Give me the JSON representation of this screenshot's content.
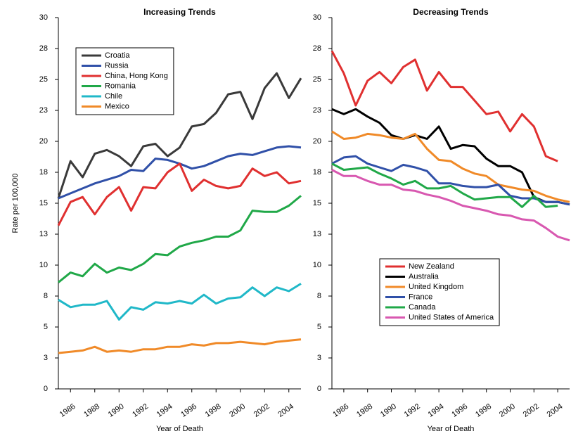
{
  "chart_data": [
    {
      "type": "line",
      "title": "Increasing Trends",
      "y_label": "Rate per 100,000",
      "x_label": "Year of Death",
      "x": [
        1985,
        1986,
        1987,
        1988,
        1989,
        1990,
        1991,
        1992,
        1993,
        1994,
        1995,
        1996,
        1997,
        1998,
        1999,
        2000,
        2001,
        2002,
        2003,
        2004,
        2005
      ],
      "xlim": [
        1985,
        2005
      ],
      "xticks": [
        1986,
        1988,
        1990,
        1992,
        1994,
        1996,
        1998,
        2000,
        2002,
        2004
      ],
      "ylim": [
        0,
        30
      ],
      "yticks": [
        0,
        {
          "value": 2.5,
          "label": "3"
        },
        5,
        {
          "value": 7.5,
          "label": "8"
        },
        10,
        {
          "value": 12.5,
          "label": "13"
        },
        15,
        {
          "value": 17.5,
          "label": "18"
        },
        20,
        {
          "value": 22.5,
          "label": "23"
        },
        25,
        {
          "value": 27.5,
          "label": "28"
        },
        30
      ],
      "legend_position": "upper left",
      "series": [
        {
          "name": "Croatia",
          "color": "#3a3a3a",
          "values": [
            15.4,
            18.4,
            17.1,
            19.0,
            19.3,
            18.8,
            18.0,
            19.6,
            19.8,
            18.8,
            19.5,
            21.2,
            21.4,
            22.3,
            23.8,
            24.0,
            21.8,
            24.3,
            25.5,
            23.5,
            25.1
          ]
        },
        {
          "name": "Russia",
          "color": "#3050a8",
          "values": [
            15.4,
            15.8,
            16.2,
            16.6,
            16.9,
            17.2,
            17.7,
            17.6,
            18.6,
            18.5,
            18.2,
            17.8,
            18.0,
            18.4,
            18.8,
            19.0,
            18.9,
            19.2,
            19.5,
            19.6,
            19.5
          ]
        },
        {
          "name": "China, Hong Kong",
          "color": "#e03030",
          "values": [
            13.2,
            15.1,
            15.5,
            14.1,
            15.5,
            16.3,
            14.4,
            16.3,
            16.2,
            17.5,
            18.2,
            16.0,
            16.9,
            16.4,
            16.2,
            16.4,
            17.8,
            17.2,
            17.5,
            16.6,
            16.8
          ]
        },
        {
          "name": "Romania",
          "color": "#20a848",
          "values": [
            8.6,
            9.4,
            9.1,
            10.1,
            9.4,
            9.8,
            9.6,
            10.1,
            10.9,
            10.8,
            11.5,
            11.8,
            12.0,
            12.3,
            12.3,
            12.8,
            14.4,
            14.3,
            14.3,
            14.8,
            15.6
          ]
        },
        {
          "name": "Chile",
          "color": "#20b8c8",
          "values": [
            7.2,
            6.6,
            6.8,
            6.8,
            7.1,
            5.6,
            6.6,
            6.4,
            7.0,
            6.9,
            7.1,
            6.9,
            7.6,
            6.9,
            7.3,
            7.4,
            8.2,
            7.5,
            8.2,
            7.9,
            8.5
          ]
        },
        {
          "name": "Mexico",
          "color": "#f08a28",
          "values": [
            2.9,
            3.0,
            3.1,
            3.4,
            3.0,
            3.1,
            3.0,
            3.2,
            3.2,
            3.4,
            3.4,
            3.6,
            3.5,
            3.7,
            3.7,
            3.8,
            3.7,
            3.6,
            3.8,
            3.9,
            4.0
          ]
        }
      ]
    },
    {
      "type": "line",
      "title": "Decreasing Trends",
      "x_label": "Year of Death",
      "x": [
        1985,
        1986,
        1987,
        1988,
        1989,
        1990,
        1991,
        1992,
        1993,
        1994,
        1995,
        1996,
        1997,
        1998,
        1999,
        2000,
        2001,
        2002,
        2003,
        2004,
        2005
      ],
      "xlim": [
        1985,
        2005
      ],
      "xticks": [
        1986,
        1988,
        1990,
        1992,
        1994,
        1996,
        1998,
        2000,
        2002,
        2004
      ],
      "ylim": [
        0,
        30
      ],
      "yticks": [
        0,
        {
          "value": 2.5,
          "label": "3"
        },
        5,
        {
          "value": 7.5,
          "label": "8"
        },
        10,
        {
          "value": 12.5,
          "label": "13"
        },
        15,
        {
          "value": 17.5,
          "label": "18"
        },
        20,
        {
          "value": 22.5,
          "label": "23"
        },
        25,
        {
          "value": 27.5,
          "label": "28"
        },
        30
      ],
      "legend_position": "lower center",
      "series": [
        {
          "name": "New Zealand",
          "color": "#e03030",
          "values": [
            27.3,
            25.5,
            22.9,
            24.9,
            25.6,
            24.7,
            26.0,
            26.6,
            24.1,
            25.6,
            24.4,
            24.4,
            23.3,
            22.2,
            22.4,
            20.8,
            22.2,
            21.2,
            18.8,
            18.4,
            null
          ]
        },
        {
          "name": "Australia",
          "color": "#000000",
          "values": [
            22.6,
            22.2,
            22.6,
            22.0,
            21.5,
            20.5,
            20.2,
            20.5,
            20.2,
            21.2,
            19.4,
            19.7,
            19.6,
            18.6,
            18.0,
            18.0,
            17.5,
            15.5,
            15.1,
            15.1,
            14.9
          ]
        },
        {
          "name": "United Kingdom",
          "color": "#f08a28",
          "values": [
            20.8,
            20.2,
            20.3,
            20.6,
            20.5,
            20.3,
            20.2,
            20.6,
            19.4,
            18.5,
            18.4,
            17.8,
            17.4,
            17.2,
            16.5,
            16.3,
            16.1,
            16.0,
            15.6,
            15.3,
            15.1
          ]
        },
        {
          "name": "France",
          "color": "#3050a8",
          "values": [
            18.2,
            18.7,
            18.8,
            18.2,
            17.9,
            17.6,
            18.1,
            17.9,
            17.6,
            16.6,
            16.6,
            16.4,
            16.3,
            16.3,
            16.5,
            15.6,
            15.4,
            15.4,
            15.1,
            15.1,
            14.9
          ]
        },
        {
          "name": "Canada",
          "color": "#20a848",
          "values": [
            18.2,
            17.7,
            17.8,
            17.9,
            17.4,
            17.0,
            16.5,
            16.8,
            16.2,
            16.2,
            16.4,
            15.8,
            15.3,
            15.4,
            15.5,
            15.5,
            14.7,
            15.6,
            14.7,
            14.8,
            null
          ]
        },
        {
          "name": "United States of America",
          "color": "#d858b0",
          "values": [
            17.7,
            17.2,
            17.2,
            16.8,
            16.5,
            16.5,
            16.1,
            16.0,
            15.7,
            15.5,
            15.2,
            14.8,
            14.6,
            14.4,
            14.1,
            14.0,
            13.7,
            13.6,
            13.0,
            12.3,
            12.0
          ]
        }
      ]
    }
  ]
}
